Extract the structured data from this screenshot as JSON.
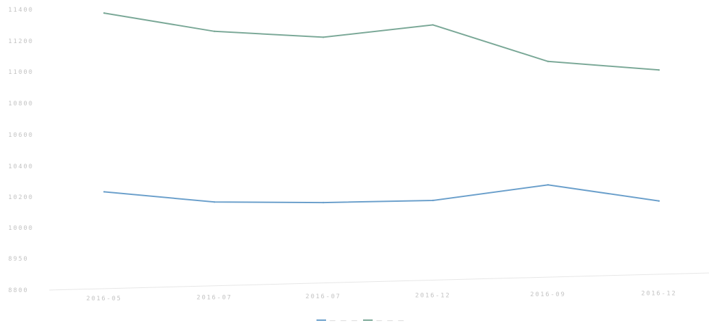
{
  "chart_data": {
    "type": "line",
    "x": [
      "2016-05",
      "2016-07",
      "2016-07",
      "2016-12",
      "2016-09",
      "2016-12"
    ],
    "yticks": [
      "8800",
      "8950",
      "10000",
      "10200",
      "10400",
      "10600",
      "10800",
      "11000",
      "11200",
      "11400"
    ],
    "ylim": [
      8800,
      11400
    ],
    "series": [
      {
        "values": [
          11380,
          11210,
          11155,
          11270,
          10930,
          10850
        ],
        "color": "#7aa897"
      },
      {
        "values": [
          9715,
          9620,
          9615,
          9635,
          9780,
          9630
        ],
        "color": "#6a9fcb"
      }
    ],
    "legend": [
      "— — —",
      "— — —"
    ],
    "legend_placement": "bottom-center",
    "grid": false
  }
}
